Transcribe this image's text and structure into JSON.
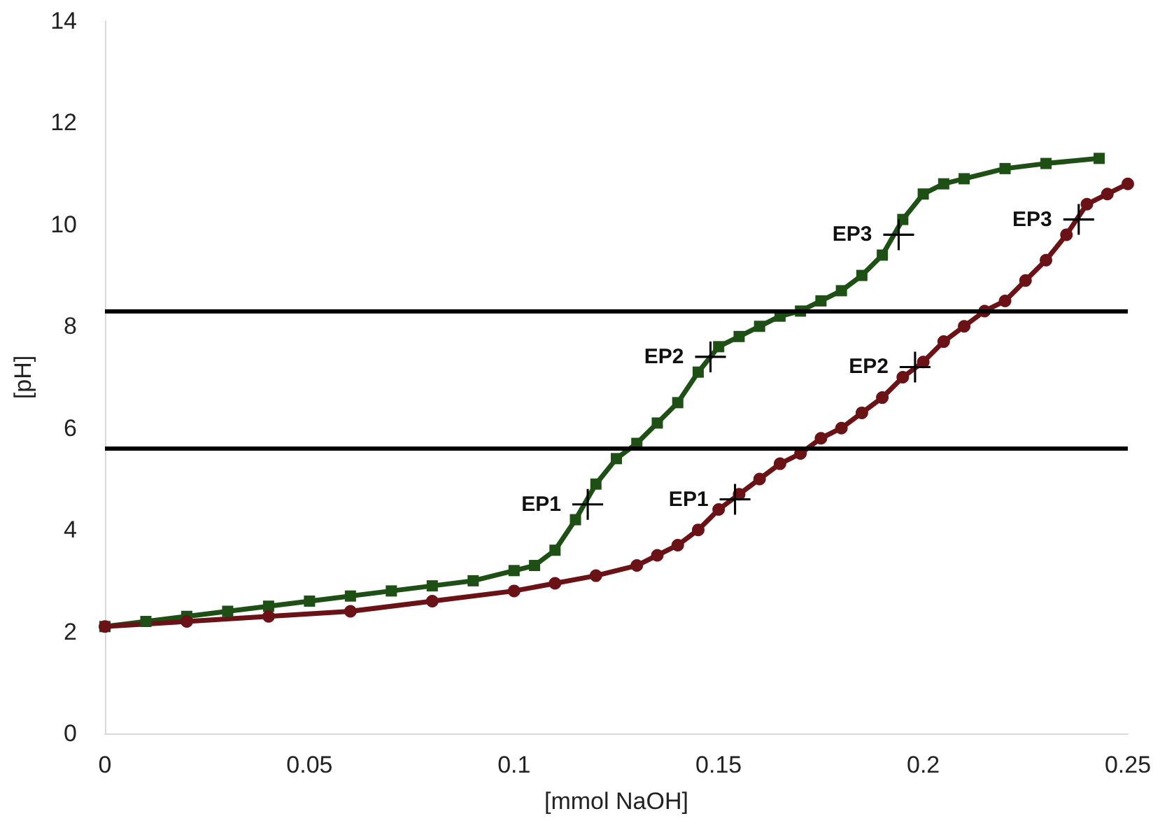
{
  "chart_data": {
    "type": "line",
    "xlabel": "[mmol NaOH]",
    "ylabel": "[pH]",
    "xlim": [
      0,
      0.25
    ],
    "xticks": [
      0,
      0.05,
      0.1,
      0.15,
      0.2,
      0.25
    ],
    "ylim": [
      0,
      14
    ],
    "yticks": [
      0,
      2,
      4,
      6,
      8,
      10,
      12,
      14
    ],
    "grid": false,
    "line_style": "solid",
    "series": [
      {
        "color": "#1e5016",
        "marker": "square",
        "x": [
          0,
          0.01,
          0.02,
          0.03,
          0.04,
          0.05,
          0.06,
          0.07,
          0.08,
          0.09,
          0.1,
          0.105,
          0.11,
          0.115,
          0.12,
          0.125,
          0.13,
          0.135,
          0.14,
          0.145,
          0.15,
          0.155,
          0.16,
          0.165,
          0.17,
          0.175,
          0.18,
          0.185,
          0.19,
          0.195,
          0.2,
          0.205,
          0.21,
          0.22,
          0.23,
          0.243
        ],
        "values": [
          2.1,
          2.2,
          2.3,
          2.4,
          2.5,
          2.6,
          2.7,
          2.8,
          2.9,
          3.0,
          3.2,
          3.3,
          3.6,
          4.2,
          4.9,
          5.4,
          5.7,
          6.1,
          6.5,
          7.1,
          7.6,
          7.8,
          8.0,
          8.2,
          8.3,
          8.5,
          8.7,
          9.0,
          9.4,
          10.1,
          10.6,
          10.8,
          10.9,
          11.1,
          11.2,
          11.3
        ]
      },
      {
        "color": "#6b1216",
        "marker": "circle",
        "x": [
          0,
          0.02,
          0.04,
          0.06,
          0.08,
          0.1,
          0.11,
          0.12,
          0.13,
          0.135,
          0.14,
          0.145,
          0.15,
          0.155,
          0.16,
          0.165,
          0.17,
          0.175,
          0.18,
          0.185,
          0.19,
          0.195,
          0.2,
          0.205,
          0.21,
          0.215,
          0.22,
          0.225,
          0.23,
          0.235,
          0.24,
          0.245,
          0.25
        ],
        "values": [
          2.1,
          2.2,
          2.3,
          2.4,
          2.6,
          2.8,
          2.95,
          3.1,
          3.3,
          3.5,
          3.7,
          4.0,
          4.4,
          4.7,
          5.0,
          5.3,
          5.5,
          5.8,
          6.0,
          6.3,
          6.6,
          7.0,
          7.3,
          7.7,
          8.0,
          8.3,
          8.5,
          8.9,
          9.3,
          9.8,
          10.4,
          10.6,
          10.8
        ]
      },
      {
        "type": "scatter",
        "color": "#000000",
        "marker": "cross",
        "x": [
          0.118,
          0.148,
          0.194,
          0.154,
          0.198,
          0.238
        ],
        "values": [
          4.5,
          7.4,
          9.8,
          4.6,
          7.2,
          10.1
        ],
        "value_labels": [
          "EP1",
          "EP2",
          "EP3",
          "EP1",
          "EP2",
          "EP3"
        ]
      }
    ],
    "ref_lines": [
      {
        "axis": "y",
        "value": 8.3,
        "color": "#000000"
      },
      {
        "axis": "y",
        "value": 5.6,
        "color": "#000000"
      }
    ]
  }
}
